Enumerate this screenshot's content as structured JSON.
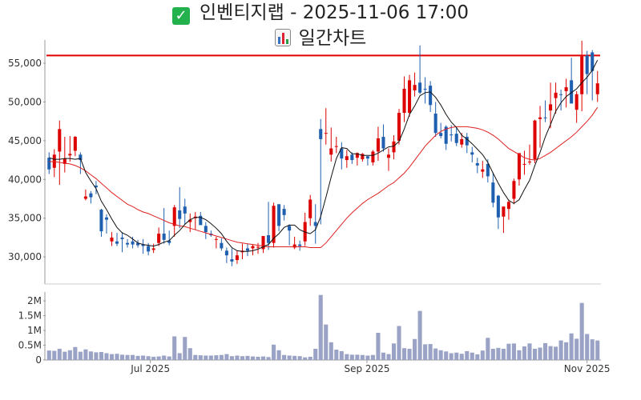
{
  "title": {
    "icon": "check-mark-icon",
    "text": "인벤티지랩 - 2025-11-06 17:00",
    "subtitle_icon": "bar-chart-icon",
    "subtitle": "일간차트"
  },
  "colors": {
    "up": "#dd0000",
    "down": "#1f5fb0",
    "ma_short": "#111111",
    "ma_long": "#e02020",
    "resistance": "#e00000",
    "volume": "#9aa3c6",
    "axis": "#999999"
  },
  "chart_data": [
    {
      "type": "candlestick",
      "price_ylim": [
        26500,
        58000
      ],
      "price_ticks": [
        "30,000",
        "35,000",
        "40,000",
        "45,000",
        "50,000",
        "55,000"
      ],
      "price_tick_values": [
        30000,
        35000,
        40000,
        45000,
        50000,
        55000
      ],
      "resistance_line": 56000,
      "x_tick_labels": [
        "Jul 2025",
        "Sep 2025",
        "Nov 2025"
      ],
      "x_tick_dates": [
        "2025-07-01",
        "2025-09-01",
        "2025-11-03"
      ],
      "series": [
        {
          "name": "MA short",
          "style": "thin-black"
        },
        {
          "name": "MA long",
          "style": "thin-red"
        }
      ],
      "dates": [
        "2025-06-02",
        "2025-06-04",
        "2025-06-05",
        "2025-06-09",
        "2025-06-10",
        "2025-06-11",
        "2025-06-12",
        "2025-06-13",
        "2025-06-16",
        "2025-06-17",
        "2025-06-18",
        "2025-06-19",
        "2025-06-20",
        "2025-06-23",
        "2025-06-24",
        "2025-06-25",
        "2025-06-26",
        "2025-06-27",
        "2025-06-30",
        "2025-07-01",
        "2025-07-02",
        "2025-07-03",
        "2025-07-04",
        "2025-07-07",
        "2025-07-08",
        "2025-07-09",
        "2025-07-10",
        "2025-07-11",
        "2025-07-14",
        "2025-07-15",
        "2025-07-16",
        "2025-07-17",
        "2025-07-18",
        "2025-07-21",
        "2025-07-22",
        "2025-07-23",
        "2025-07-24",
        "2025-07-25",
        "2025-07-28",
        "2025-07-29",
        "2025-07-30",
        "2025-07-31",
        "2025-08-01",
        "2025-08-04",
        "2025-08-05",
        "2025-08-06",
        "2025-08-07",
        "2025-08-08",
        "2025-08-11",
        "2025-08-12",
        "2025-08-13",
        "2025-08-14",
        "2025-08-18",
        "2025-08-19",
        "2025-08-20",
        "2025-08-21",
        "2025-08-22",
        "2025-08-25",
        "2025-08-26",
        "2025-08-27",
        "2025-08-28",
        "2025-08-29",
        "2025-09-01",
        "2025-09-02",
        "2025-09-03",
        "2025-09-04",
        "2025-09-05",
        "2025-09-08",
        "2025-09-09",
        "2025-09-10",
        "2025-09-11",
        "2025-09-12",
        "2025-09-15",
        "2025-09-16",
        "2025-09-17",
        "2025-09-18",
        "2025-09-19",
        "2025-09-22",
        "2025-09-23",
        "2025-09-24",
        "2025-09-25",
        "2025-09-26",
        "2025-09-29",
        "2025-09-30",
        "2025-10-01",
        "2025-10-02",
        "2025-10-10",
        "2025-10-13",
        "2025-10-14",
        "2025-10-15",
        "2025-10-16",
        "2025-10-17",
        "2025-10-20",
        "2025-10-21",
        "2025-10-22",
        "2025-10-23",
        "2025-10-24",
        "2025-10-27",
        "2025-10-28",
        "2025-10-29",
        "2025-10-30",
        "2025-10-31",
        "2025-11-03",
        "2025-11-04",
        "2025-11-05",
        "2025-11-06"
      ],
      "open": [
        42800,
        41500,
        43600,
        42000,
        43100,
        43700,
        43200,
        37500,
        38200,
        39200,
        36100,
        35100,
        32000,
        32000,
        32500,
        31800,
        32000,
        31800,
        31600,
        31400,
        30900,
        31800,
        33000,
        32100,
        34000,
        36000,
        36500,
        34500,
        35000,
        35300,
        34000,
        33000,
        32200,
        31800,
        30800,
        29700,
        29600,
        30600,
        31100,
        31100,
        31200,
        31000,
        32800,
        31800,
        36800,
        36200,
        34000,
        31200,
        31600,
        32000,
        35000,
        34500,
        46500,
        46000,
        43200,
        44300,
        44000,
        42500,
        43200,
        42800,
        42600,
        43000,
        42200,
        43600,
        45500,
        42800,
        43500,
        45000,
        48600,
        48600,
        51500,
        52500,
        51700,
        52100,
        48500,
        46000,
        46800,
        45800,
        45900,
        44500,
        45500,
        43500,
        42100,
        41000,
        42000,
        39600,
        37900,
        35200,
        36200,
        37500,
        40000,
        42000,
        42200,
        42600,
        47800,
        48000,
        48900,
        50500,
        51000,
        51400,
        52800,
        49000,
        51000,
        56000,
        56400,
        51000
      ],
      "high": [
        43500,
        43900,
        47600,
        45500,
        45600,
        45600,
        43500,
        38700,
        38500,
        39800,
        36200,
        35500,
        33200,
        33100,
        33200,
        32300,
        32600,
        32200,
        32300,
        31800,
        31700,
        33800,
        36300,
        33400,
        36700,
        39000,
        37500,
        35600,
        35800,
        35800,
        34500,
        33400,
        32600,
        32400,
        31200,
        31100,
        30800,
        31700,
        31700,
        31600,
        31800,
        32700,
        37100,
        37000,
        36800,
        36700,
        34200,
        32600,
        32100,
        35700,
        38000,
        36800,
        47800,
        49200,
        46700,
        45500,
        44800,
        43800,
        43500,
        43500,
        43400,
        43000,
        43800,
        46800,
        47100,
        44000,
        45700,
        49100,
        53300,
        53500,
        53800,
        57300,
        53200,
        52700,
        50000,
        47300,
        47000,
        47000,
        46700,
        46000,
        46000,
        44200,
        42800,
        42400,
        42600,
        40900,
        38000,
        36400,
        37400,
        40100,
        43300,
        43700,
        44500,
        47700,
        49500,
        50200,
        52500,
        52500,
        51600,
        53000,
        55700,
        51400,
        57900,
        56600,
        56700,
        54000
      ],
      "low": [
        40700,
        40300,
        39300,
        40900,
        42300,
        43000,
        40700,
        37300,
        36900,
        38100,
        32600,
        33000,
        31400,
        31400,
        30600,
        31200,
        31100,
        31200,
        30400,
        30200,
        30500,
        31400,
        31700,
        31500,
        32600,
        33700,
        34200,
        33200,
        33500,
        34200,
        32300,
        32600,
        31100,
        30800,
        29200,
        28800,
        29100,
        29700,
        30100,
        30200,
        30400,
        30500,
        30900,
        31200,
        33300,
        34700,
        31500,
        31000,
        30800,
        31400,
        34000,
        31700,
        34200,
        44500,
        42300,
        43400,
        41300,
        41500,
        42000,
        41800,
        42300,
        41800,
        41800,
        42400,
        43600,
        41100,
        42600,
        44500,
        47400,
        48100,
        50700,
        51000,
        49800,
        48700,
        45500,
        45300,
        43800,
        44900,
        44300,
        44100,
        43400,
        42200,
        40800,
        40200,
        39600,
        36400,
        33600,
        33100,
        34800,
        36800,
        39200,
        40600,
        41900,
        42100,
        44100,
        47400,
        46600,
        48500,
        48900,
        49300,
        49800,
        47300,
        48800,
        51000,
        50200,
        50000
      ],
      "close": [
        41300,
        43200,
        46500,
        42700,
        43300,
        45500,
        42500,
        37800,
        37700,
        39000,
        33300,
        34800,
        32500,
        31700,
        32300,
        31600,
        31600,
        31500,
        31400,
        30700,
        31100,
        33000,
        32200,
        31800,
        36400,
        34900,
        35600,
        34800,
        35200,
        34100,
        33200,
        32800,
        32300,
        31100,
        30200,
        29400,
        30200,
        30800,
        30800,
        31400,
        31300,
        32700,
        31800,
        36600,
        34000,
        35400,
        33400,
        31600,
        31400,
        34500,
        37400,
        34000,
        45200,
        46000,
        44000,
        44300,
        42700,
        43000,
        42500,
        43400,
        43300,
        42700,
        43600,
        45300,
        44000,
        43200,
        44900,
        48600,
        51700,
        52800,
        52200,
        51200,
        51600,
        49600,
        46000,
        45600,
        44600,
        45700,
        44700,
        45200,
        44400,
        43200,
        41800,
        41300,
        40400,
        37000,
        35100,
        36500,
        37100,
        39800,
        43400,
        42000,
        42300,
        47600,
        48000,
        47900,
        49700,
        51200,
        50900,
        51900,
        49800,
        51000,
        55900,
        53600,
        54000,
        52400
      ],
      "ma_short": [
        42800,
        42600,
        42600,
        42700,
        42700,
        42600,
        42700,
        40900,
        39800,
        38800,
        37200,
        36100,
        34900,
        33800,
        33100,
        32800,
        32300,
        31800,
        31600,
        31500,
        31400,
        31600,
        31900,
        32100,
        32800,
        33400,
        34200,
        34800,
        35100,
        35100,
        34800,
        34300,
        33700,
        33000,
        32000,
        31200,
        30800,
        30700,
        30700,
        30800,
        31000,
        31300,
        31600,
        32400,
        33000,
        33800,
        34100,
        34100,
        33500,
        33200,
        33000,
        33500,
        35200,
        37700,
        40300,
        42700,
        44100,
        44000,
        43300,
        43300,
        43100,
        43100,
        43100,
        43400,
        43800,
        44200,
        44300,
        44900,
        46500,
        48400,
        49500,
        50800,
        51200,
        51300,
        50600,
        49600,
        48400,
        47400,
        46700,
        45700,
        45200,
        44600,
        43900,
        43200,
        42200,
        40800,
        39500,
        38300,
        37300,
        36900,
        37400,
        38700,
        39900,
        41800,
        43500,
        45500,
        47100,
        48800,
        49900,
        50700,
        51200,
        51700,
        52500,
        53200,
        54100,
        55400
      ],
      "ma_long": [
        42300,
        42300,
        42200,
        42100,
        42000,
        41800,
        41500,
        41100,
        40600,
        40100,
        39500,
        38900,
        38300,
        37800,
        37300,
        36800,
        36500,
        36100,
        35800,
        35600,
        35300,
        35000,
        34700,
        34400,
        34200,
        34000,
        33900,
        33700,
        33500,
        33300,
        33100,
        32900,
        32700,
        32500,
        32300,
        32100,
        31900,
        31800,
        31700,
        31600,
        31500,
        31400,
        31300,
        31300,
        31300,
        31300,
        31300,
        31300,
        31300,
        31300,
        31200,
        31200,
        31200,
        31800,
        32600,
        33400,
        34200,
        35000,
        35700,
        36300,
        36900,
        37400,
        37800,
        38200,
        38700,
        39200,
        39600,
        40200,
        40800,
        41600,
        42500,
        43400,
        44300,
        45000,
        45700,
        46200,
        46500,
        46700,
        46800,
        46800,
        46800,
        46700,
        46600,
        46400,
        46100,
        45700,
        45200,
        44600,
        44000,
        43600,
        43200,
        42800,
        42600,
        42500,
        42700,
        43100,
        43500,
        44000,
        44500,
        45000,
        45500,
        46100,
        46800,
        47500,
        48300,
        49300
      ],
      "volume": [
        320000,
        310000,
        380000,
        280000,
        330000,
        440000,
        280000,
        360000,
        290000,
        260000,
        270000,
        230000,
        200000,
        210000,
        180000,
        170000,
        170000,
        140000,
        150000,
        130000,
        110000,
        120000,
        150000,
        120000,
        800000,
        230000,
        780000,
        400000,
        170000,
        160000,
        150000,
        150000,
        160000,
        170000,
        200000,
        130000,
        150000,
        130000,
        140000,
        120000,
        110000,
        120000,
        100000,
        520000,
        330000,
        170000,
        150000,
        140000,
        130000,
        90000,
        110000,
        380000,
        2200000,
        1200000,
        600000,
        350000,
        300000,
        200000,
        180000,
        180000,
        170000,
        150000,
        170000,
        920000,
        250000,
        200000,
        560000,
        1150000,
        400000,
        380000,
        710000,
        1660000,
        530000,
        540000,
        390000,
        330000,
        290000,
        230000,
        250000,
        210000,
        300000,
        250000,
        190000,
        320000,
        750000,
        380000,
        410000,
        380000,
        550000,
        560000,
        330000,
        460000,
        560000,
        380000,
        420000,
        570000,
        470000,
        450000,
        660000,
        600000,
        900000,
        720000,
        1930000,
        880000,
        700000,
        660000
      ]
    },
    {
      "type": "bar",
      "name": "Volume",
      "volume_ylim": [
        0,
        2300000
      ],
      "volume_ticks": [
        "0",
        "0.5M",
        "1M",
        "1.5M",
        "2M"
      ],
      "volume_tick_values": [
        0,
        500000,
        1000000,
        1500000,
        2000000
      ]
    }
  ]
}
